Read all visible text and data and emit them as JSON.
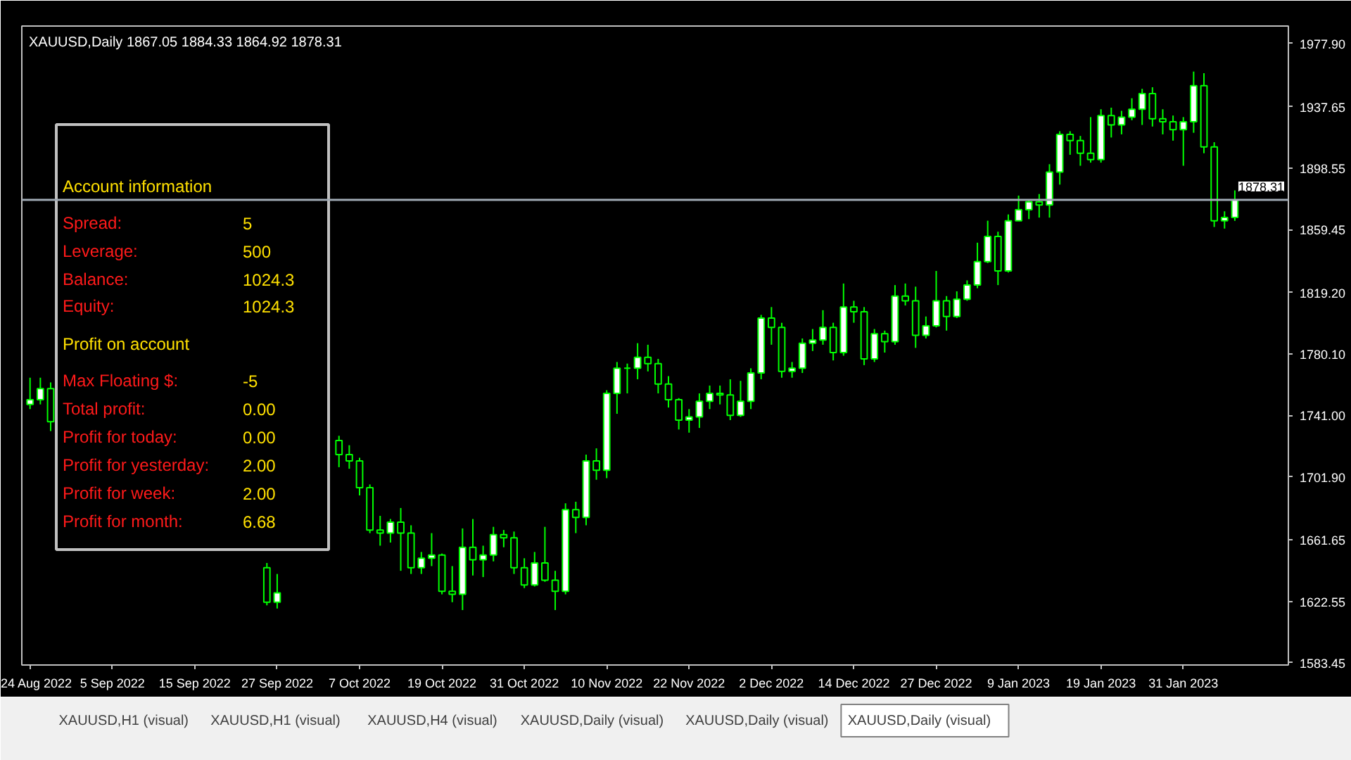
{
  "chart_data": {
    "type": "candlestick",
    "title": "XAUUSD,Daily  1867.05 1884.33 1864.92 1878.31",
    "color": "#00ff00",
    "categories": [
      "24 Aug 2022",
      null,
      null,
      null,
      null,
      null,
      null,
      null,
      "5 Sep 2022",
      null,
      null,
      null,
      null,
      null,
      null,
      null,
      "15 Sep 2022",
      null,
      null,
      null,
      null,
      null,
      null,
      null,
      "27 Sep 2022",
      null,
      null,
      null,
      null,
      null,
      null,
      null,
      "7 Oct 2022",
      null,
      null,
      null,
      null,
      null,
      null,
      null,
      "19 Oct 2022",
      null,
      null,
      null,
      null,
      null,
      null,
      null,
      "31 Oct 2022",
      null,
      null,
      null,
      null,
      null,
      null,
      null,
      "10 Nov 2022",
      null,
      null,
      null,
      null,
      null,
      null,
      null,
      "22 Nov 2022",
      null,
      null,
      null,
      null,
      null,
      null,
      null,
      "2 Dec 2022",
      null,
      null,
      null,
      null,
      null,
      null,
      null,
      "14 Dec 2022",
      null,
      null,
      null,
      null,
      null,
      null,
      null,
      "27 Dec 2022",
      null,
      null,
      null,
      null,
      null,
      null,
      null,
      "9 Jan 2023",
      null,
      null,
      null,
      null,
      null,
      null,
      null,
      "19 Jan 2023",
      null,
      null,
      null,
      null,
      null,
      null,
      null,
      "31 Jan 2023",
      null,
      null,
      null,
      null,
      null
    ],
    "ohlc": [
      [
        1748,
        1765,
        1745,
        1751
      ],
      [
        1751,
        1765,
        1748,
        1758
      ],
      [
        1758,
        1762,
        1731,
        1737
      ],
      null,
      null,
      null,
      null,
      null,
      null,
      null,
      null,
      null,
      null,
      null,
      null,
      null,
      null,
      null,
      null,
      null,
      null,
      null,
      null,
      [
        1644,
        1647,
        1620,
        1622
      ],
      [
        1622,
        1640,
        1618,
        1628
      ],
      null,
      null,
      null,
      null,
      null,
      [
        1725,
        1728,
        1708,
        1716
      ],
      [
        1716,
        1722,
        1707,
        1712
      ],
      [
        1712,
        1714,
        1690,
        1695
      ],
      [
        1695,
        1697,
        1666,
        1668
      ],
      [
        1668,
        1677,
        1658,
        1666
      ],
      [
        1666,
        1675,
        1660,
        1673
      ],
      [
        1673,
        1682,
        1642,
        1666
      ],
      [
        1666,
        1671,
        1640,
        1644
      ],
      [
        1644,
        1654,
        1640,
        1650
      ],
      [
        1650,
        1666,
        1645,
        1652
      ],
      [
        1652,
        1653,
        1627,
        1629
      ],
      [
        1629,
        1645,
        1622,
        1627
      ],
      [
        1627,
        1669,
        1617,
        1657
      ],
      [
        1657,
        1675,
        1639,
        1649
      ],
      [
        1649,
        1658,
        1638,
        1652
      ],
      [
        1652,
        1670,
        1648,
        1665
      ],
      [
        1665,
        1668,
        1657,
        1663
      ],
      [
        1663,
        1667,
        1640,
        1644
      ],
      [
        1644,
        1650,
        1631,
        1633
      ],
      [
        1633,
        1654,
        1632,
        1647
      ],
      [
        1647,
        1670,
        1635,
        1636
      ],
      [
        1636,
        1642,
        1617,
        1629
      ],
      [
        1629,
        1685,
        1627,
        1681
      ],
      [
        1681,
        1686,
        1666,
        1676
      ],
      [
        1676,
        1716,
        1671,
        1712
      ],
      [
        1712,
        1720,
        1700,
        1706
      ],
      [
        1706,
        1757,
        1701,
        1755
      ],
      [
        1755,
        1775,
        1742,
        1771
      ],
      [
        1771,
        1774,
        1755,
        1771
      ],
      [
        1771,
        1787,
        1764,
        1778
      ],
      [
        1778,
        1786,
        1769,
        1774
      ],
      [
        1774,
        1777,
        1755,
        1761
      ],
      [
        1761,
        1766,
        1746,
        1751
      ],
      [
        1751,
        1752,
        1732,
        1738
      ],
      [
        1738,
        1745,
        1730,
        1740
      ],
      [
        1740,
        1755,
        1733,
        1750
      ],
      [
        1750,
        1760,
        1745,
        1755
      ],
      [
        1755,
        1760,
        1748,
        1754
      ],
      [
        1754,
        1764,
        1738,
        1741
      ],
      [
        1741,
        1763,
        1740,
        1750
      ],
      [
        1750,
        1771,
        1745,
        1768
      ],
      [
        1768,
        1805,
        1764,
        1803
      ],
      [
        1803,
        1810,
        1786,
        1797
      ],
      [
        1797,
        1800,
        1765,
        1769
      ],
      [
        1769,
        1775,
        1765,
        1771
      ],
      [
        1771,
        1790,
        1768,
        1787
      ],
      [
        1787,
        1796,
        1782,
        1789
      ],
      [
        1789,
        1808,
        1786,
        1797
      ],
      [
        1797,
        1800,
        1776,
        1781
      ],
      [
        1781,
        1825,
        1779,
        1810
      ],
      [
        1810,
        1814,
        1800,
        1807
      ],
      [
        1807,
        1810,
        1773,
        1777
      ],
      [
        1777,
        1796,
        1775,
        1793
      ],
      [
        1793,
        1795,
        1781,
        1788
      ],
      [
        1788,
        1824,
        1786,
        1817
      ],
      [
        1817,
        1825,
        1811,
        1814
      ],
      [
        1814,
        1823,
        1784,
        1792
      ],
      [
        1792,
        1804,
        1790,
        1798
      ],
      [
        1798,
        1833,
        1797,
        1814
      ],
      [
        1814,
        1817,
        1795,
        1804
      ],
      [
        1804,
        1820,
        1803,
        1815
      ],
      [
        1815,
        1827,
        1814,
        1824
      ],
      [
        1824,
        1851,
        1822,
        1839
      ],
      [
        1839,
        1865,
        1838,
        1855
      ],
      [
        1855,
        1858,
        1824,
        1833
      ],
      [
        1833,
        1869,
        1832,
        1865
      ],
      [
        1865,
        1881,
        1865,
        1872
      ],
      [
        1872,
        1878,
        1866,
        1877
      ],
      [
        1877,
        1882,
        1867,
        1875
      ],
      [
        1875,
        1901,
        1867,
        1896
      ],
      [
        1896,
        1922,
        1888,
        1920
      ],
      [
        1920,
        1922,
        1907,
        1916
      ],
      [
        1916,
        1919,
        1900,
        1908
      ],
      [
        1908,
        1931,
        1902,
        1904
      ],
      [
        1904,
        1936,
        1902,
        1932
      ],
      [
        1932,
        1937,
        1918,
        1926
      ],
      [
        1926,
        1935,
        1920,
        1931
      ],
      [
        1931,
        1943,
        1929,
        1936
      ],
      [
        1936,
        1949,
        1926,
        1946
      ],
      [
        1946,
        1950,
        1925,
        1930
      ],
      [
        1930,
        1936,
        1920,
        1928
      ],
      [
        1928,
        1932,
        1916,
        1923
      ],
      [
        1923,
        1931,
        1900,
        1928
      ],
      [
        1928,
        1960,
        1921,
        1951
      ],
      [
        1951,
        1959,
        1908,
        1912
      ],
      [
        1912,
        1915,
        1861,
        1865
      ],
      [
        1865,
        1871,
        1860,
        1867.05
      ],
      [
        1867.05,
        1884.33,
        1864.92,
        1878.31
      ]
    ],
    "ylim": [
      1582,
      1989
    ],
    "yticks": [
      {
        "value": 1583.45,
        "label": "1583.45"
      },
      {
        "value": 1622.55,
        "label": "1622.55"
      },
      {
        "value": 1661.65,
        "label": "1661.65"
      },
      {
        "value": 1701.9,
        "label": "1701.90"
      },
      {
        "value": 1741.0,
        "label": "1741.00"
      },
      {
        "value": 1780.1,
        "label": "1780.10"
      },
      {
        "value": 1819.2,
        "label": "1819.20"
      },
      {
        "value": 1859.45,
        "label": "1859.45"
      },
      {
        "value": 1898.55,
        "label": "1898.55"
      },
      {
        "value": 1937.65,
        "label": "1937.65"
      },
      {
        "value": 1977.9,
        "label": "1977.90"
      }
    ],
    "ref_lines": [
      {
        "axis": "y",
        "value": 1878.31,
        "label": "1878.31",
        "color": "#a0aab4"
      }
    ],
    "grid": false,
    "annotations": [
      "Account information",
      "Spread:",
      "5",
      "Leverage:",
      "500",
      "Balance:",
      "1024.3",
      "Equity:",
      "1024.3",
      "Profit on account",
      "Max Floating $:",
      "-5",
      "Total profit:",
      "0.00",
      "Profit for today:",
      "0.00",
      "Profit for yesterday:",
      "2.00",
      "Profit for week:",
      "2.00",
      "Profit for month:",
      "6.68",
      "XAUUSD,H1 (visual)",
      "XAUUSD,H1 (visual)",
      "XAUUSD,H4 (visual)",
      "XAUUSD,Daily (visual)",
      "XAUUSD,Daily (visual)",
      "XAUUSD,Daily (visual)"
    ]
  }
}
